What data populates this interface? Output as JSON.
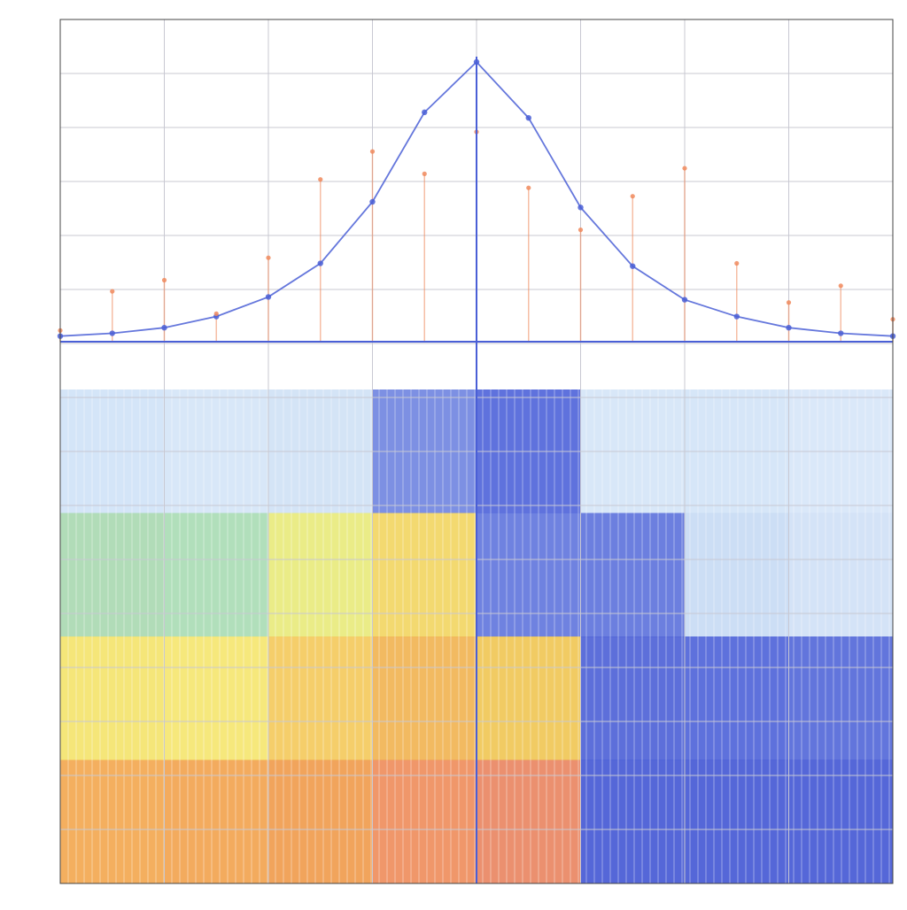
{
  "chart_data": {
    "type": "scatter",
    "title": "",
    "xlabel": "",
    "ylabel_top": "",
    "ylabel_mid": "",
    "ylabel_bottom": "",
    "x": [
      -400,
      -350,
      -300,
      -250,
      -200,
      -150,
      -100,
      -50,
      0,
      50,
      100,
      150,
      200,
      250,
      300,
      350,
      400
    ],
    "xlim": [
      -400,
      400
    ],
    "series": [
      {
        "color": "#4a5fd6",
        "panel": "top",
        "values": [
          2,
          3,
          5,
          9,
          16,
          28,
          50,
          82,
          100,
          80,
          48,
          27,
          15,
          9,
          5,
          3,
          2
        ]
      },
      {
        "color": "#f08a5d",
        "panel": "top",
        "values": [
          4,
          18,
          22,
          10,
          30,
          58,
          68,
          60,
          75,
          55,
          40,
          52,
          62,
          28,
          14,
          20,
          8
        ]
      }
    ],
    "top_panel_ylim": [
      0,
      100
    ],
    "heatmap_columns": [
      {
        "x": -350,
        "bands": [
          "#cfe2f7",
          "#a8d8b0",
          "#f4e36a",
          "#f3a64e"
        ]
      },
      {
        "x": -250,
        "bands": [
          "#d4e4f7",
          "#a9dcb4",
          "#f5e56e",
          "#f2a24d"
        ]
      },
      {
        "x": -150,
        "bands": [
          "#cfe1f5",
          "#e8ea7a",
          "#f4c95a",
          "#f09a4a"
        ]
      },
      {
        "x": -50,
        "bands": [
          "#6f84e0",
          "#f2d561",
          "#f1b350",
          "#ee8c5a"
        ]
      },
      {
        "x": 50,
        "bands": [
          "#4e63d9",
          "#5f74dd",
          "#f0c552",
          "#e9845f"
        ]
      },
      {
        "x": 150,
        "bands": [
          "#d4e4f7",
          "#5c71db",
          "#4b5fd6",
          "#4356d4"
        ]
      },
      {
        "x": 250,
        "bands": [
          "#d2e3f7",
          "#c7daf4",
          "#4d62d8",
          "#4356d4"
        ]
      },
      {
        "x": 350,
        "bands": [
          "#d6e6f8",
          "#cfe0f6",
          "#5166d8",
          "#4356d4"
        ]
      }
    ],
    "grid": true
  },
  "colors": {
    "grid": "#c8c8d2",
    "axis": "#444444",
    "blue": "#4a5fd6",
    "orange": "#f08a5d"
  }
}
